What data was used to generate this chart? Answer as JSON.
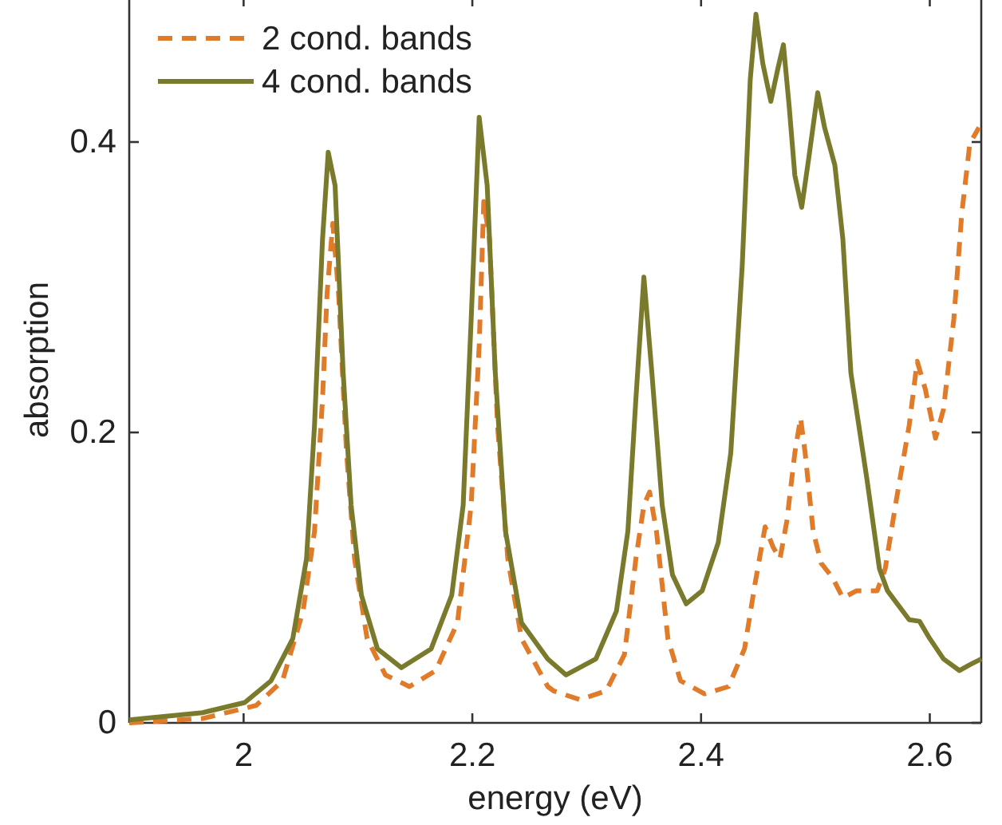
{
  "chart_data": {
    "type": "line",
    "xlabel": "energy (eV)",
    "ylabel": "absorption",
    "xlim": [
      1.9,
      2.645
    ],
    "ylim": [
      0,
      0.5
    ],
    "xticks": [
      2,
      2.2,
      2.4,
      2.6
    ],
    "yticks": [
      0,
      0.2,
      0.4
    ],
    "grid": false,
    "legend": "top left",
    "tick_labels": true,
    "series": [
      {
        "name": "2 cond. bands",
        "color": "#e07b2a",
        "line_style": "dashed",
        "x": [
          1.9,
          1.964,
          2.011,
          2.034,
          2.052,
          2.062,
          2.069,
          2.073,
          2.078,
          2.083,
          2.09,
          2.097,
          2.108,
          2.124,
          2.145,
          2.168,
          2.187,
          2.199,
          2.206,
          2.21,
          2.215,
          2.222,
          2.231,
          2.243,
          2.266,
          2.271,
          2.294,
          2.317,
          2.333,
          2.343,
          2.35,
          2.355,
          2.361,
          2.371,
          2.382,
          2.403,
          2.424,
          2.438,
          2.447,
          2.456,
          2.463,
          2.469,
          2.475,
          2.482,
          2.487,
          2.491,
          2.498,
          2.505,
          2.515,
          2.524,
          2.536,
          2.554,
          2.561,
          2.57,
          2.582,
          2.589,
          2.596,
          2.605,
          2.612,
          2.621,
          2.628,
          2.635,
          2.643
        ],
        "values": [
          0.0,
          0.003,
          0.012,
          0.029,
          0.077,
          0.132,
          0.223,
          0.296,
          0.344,
          0.296,
          0.186,
          0.113,
          0.058,
          0.033,
          0.025,
          0.036,
          0.069,
          0.15,
          0.26,
          0.359,
          0.333,
          0.205,
          0.113,
          0.058,
          0.025,
          0.022,
          0.016,
          0.022,
          0.047,
          0.113,
          0.15,
          0.159,
          0.132,
          0.058,
          0.029,
          0.02,
          0.025,
          0.051,
          0.095,
          0.135,
          0.121,
          0.113,
          0.139,
          0.186,
          0.21,
          0.186,
          0.132,
          0.11,
          0.1,
          0.086,
          0.091,
          0.091,
          0.106,
          0.15,
          0.205,
          0.249,
          0.23,
          0.196,
          0.216,
          0.278,
          0.351,
          0.399,
          0.41
        ]
      },
      {
        "name": "4 cond. bands",
        "color": "#7a7a2c",
        "line_style": "solid",
        "x": [
          1.9,
          1.964,
          2.001,
          2.024,
          2.043,
          2.055,
          2.062,
          2.069,
          2.074,
          2.08,
          2.087,
          2.094,
          2.103,
          2.117,
          2.138,
          2.164,
          2.182,
          2.192,
          2.199,
          2.206,
          2.213,
          2.22,
          2.229,
          2.243,
          2.266,
          2.282,
          2.308,
          2.326,
          2.336,
          2.343,
          2.35,
          2.357,
          2.366,
          2.375,
          2.387,
          2.401,
          2.415,
          2.426,
          2.436,
          2.443,
          2.448,
          2.454,
          2.461,
          2.467,
          2.472,
          2.477,
          2.482,
          2.488,
          2.494,
          2.502,
          2.508,
          2.517,
          2.524,
          2.531,
          2.545,
          2.556,
          2.563,
          2.582,
          2.591,
          2.6,
          2.612,
          2.626,
          2.635,
          2.645
        ],
        "values": [
          0.002,
          0.007,
          0.014,
          0.029,
          0.058,
          0.113,
          0.205,
          0.333,
          0.393,
          0.37,
          0.242,
          0.15,
          0.088,
          0.051,
          0.038,
          0.051,
          0.088,
          0.15,
          0.278,
          0.417,
          0.37,
          0.242,
          0.132,
          0.069,
          0.044,
          0.033,
          0.044,
          0.077,
          0.132,
          0.223,
          0.307,
          0.241,
          0.15,
          0.102,
          0.082,
          0.091,
          0.124,
          0.186,
          0.315,
          0.443,
          0.488,
          0.454,
          0.428,
          0.45,
          0.467,
          0.425,
          0.377,
          0.355,
          0.388,
          0.434,
          0.41,
          0.384,
          0.333,
          0.241,
          0.168,
          0.106,
          0.091,
          0.071,
          0.07,
          0.058,
          0.044,
          0.036,
          0.04,
          0.044
        ]
      }
    ]
  }
}
